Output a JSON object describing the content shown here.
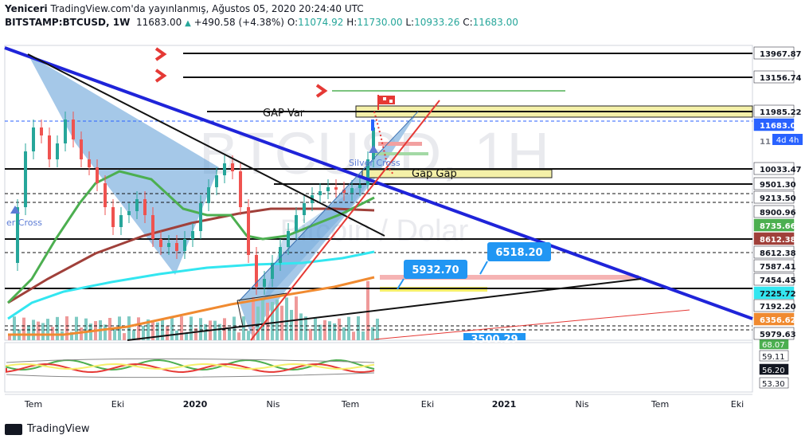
{
  "header": {
    "author": "Yeniceri",
    "published_text": "TradingView.com'da yayınlanmış, Ağustos 05, 2020 20:24:40 UTC",
    "symbol": "BITSTAMP:BTCUSD, 1W",
    "price": "11683.00",
    "change": "+490.58 (+4.38%)",
    "open_label": "O:",
    "open": "11074.92",
    "high_label": "H:",
    "high": "11730.00",
    "low_label": "L:",
    "low": "10933.26",
    "close_label": "C:",
    "close": "11683.00"
  },
  "watermark": {
    "main": "BTCUSD, 1H",
    "sub": "Bitcoin / Dolar"
  },
  "annotations": {
    "gap_var": "GAP Var",
    "gap_gap": "Gap Gap",
    "silver_cross": "Silver Cross",
    "left_cross": "er Cross",
    "box_6518": "6518.20",
    "box_5932": "5932.70",
    "box_3500": "3500.29"
  },
  "footer": {
    "brand": "TradingView"
  },
  "colors": {
    "up": "#26a69a",
    "down": "#ef5350",
    "trend": "#1f24d9",
    "fill": "#5b9bd5",
    "ema_green": "#4caf50",
    "ema_cyan": "#33e6f0",
    "ema_orange": "#f08a30",
    "ema_brown": "#a0403a"
  },
  "chart_data": {
    "type": "candlestick",
    "interval": "1W",
    "symbol": "BITSTAMP:BTCUSD",
    "price_axis_labels": [
      {
        "value": 13967.87,
        "label": "13967.87",
        "style": "white"
      },
      {
        "value": 13156.74,
        "label": "13156.74",
        "style": "white"
      },
      {
        "value": 11985.22,
        "label": "11985.22",
        "style": "white"
      },
      {
        "value": 11683.0,
        "label": "11683.00",
        "style": "blue"
      },
      {
        "value": 11300.0,
        "label": "11",
        "style": "gray"
      },
      {
        "value": 10033.47,
        "label": "10033.47",
        "style": "white"
      },
      {
        "value": 9501.3,
        "label": "9501.30",
        "style": "white"
      },
      {
        "value": 9213.5,
        "label": "9213.50",
        "style": "white"
      },
      {
        "value": 8900.96,
        "label": "8900.96",
        "style": "white"
      },
      {
        "value": 8735.66,
        "label": "8735.66",
        "style": "green"
      },
      {
        "value": 8612.38,
        "label": "8612.38",
        "style": "brown"
      },
      {
        "value": 8400.0,
        "label": "8612.38",
        "style": "white"
      },
      {
        "value": 7587.41,
        "label": "7587.41",
        "style": "white"
      },
      {
        "value": 7454.45,
        "label": "7454.45",
        "style": "white"
      },
      {
        "value": 7225.72,
        "label": "7225.72",
        "style": "cyan"
      },
      {
        "value": 7192.2,
        "label": "7192.20",
        "style": "white"
      },
      {
        "value": 6356.62,
        "label": "6356.62",
        "style": "orange"
      },
      {
        "value": 5979.63,
        "label": "5979.63",
        "style": "white"
      }
    ],
    "countdown_badge": "4d 4h",
    "x_ticks": [
      "Tem",
      "Eki",
      "2020",
      "Nis",
      "Tem",
      "Eki",
      "2021",
      "Nis",
      "Tem",
      "Eki"
    ],
    "indicator_axis_labels": [
      {
        "label": "68.07",
        "style": "green"
      },
      {
        "label": "59.11",
        "style": "white"
      },
      {
        "label": "56.20",
        "style": "black"
      },
      {
        "label": "53.30",
        "style": "white"
      }
    ],
    "horizontal_levels": [
      13967.87,
      13156.74,
      11985.22,
      10033.47,
      9501.3,
      8612.38,
      7225.72
    ],
    "boxes": [
      {
        "label": "6518.20",
        "value": 6518.2
      },
      {
        "label": "5932.70",
        "value": 5932.7
      },
      {
        "label": "3500.29",
        "value": 3500.29
      }
    ]
  }
}
